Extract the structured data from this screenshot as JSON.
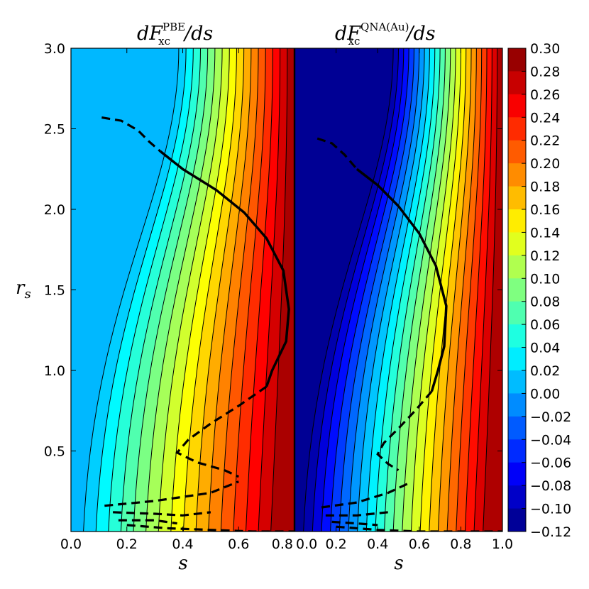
{
  "chart_data": {
    "type": "contour",
    "panels": [
      {
        "id": "pbe",
        "title": {
          "prefix": "dF",
          "sup": "PBE",
          "sub": "xc",
          "suffix": "/ds"
        },
        "xlabel": "s",
        "xlim": [
          0.0,
          0.8
        ],
        "xticks": [
          "0.0",
          "0.2",
          "0.4",
          "0.6",
          "0.8"
        ],
        "levels_min": 0.0,
        "levels_max": 0.3,
        "num_contour_lines": 16,
        "solid_curve": [
          [
            0.32,
            2.36
          ],
          [
            0.4,
            2.25
          ],
          [
            0.52,
            2.12
          ],
          [
            0.62,
            1.98
          ],
          [
            0.7,
            1.82
          ],
          [
            0.76,
            1.62
          ],
          [
            0.78,
            1.38
          ],
          [
            0.77,
            1.18
          ],
          [
            0.72,
            1.0
          ],
          [
            0.7,
            0.9
          ]
        ],
        "dashed_curves": [
          [
            [
              0.11,
              2.57
            ],
            [
              0.18,
              2.55
            ],
            [
              0.24,
              2.49
            ],
            [
              0.28,
              2.42
            ],
            [
              0.32,
              2.36
            ]
          ],
          [
            [
              0.7,
              0.9
            ],
            [
              0.6,
              0.78
            ],
            [
              0.5,
              0.67
            ],
            [
              0.42,
              0.57
            ],
            [
              0.38,
              0.49
            ],
            [
              0.45,
              0.43
            ],
            [
              0.55,
              0.38
            ],
            [
              0.6,
              0.34
            ]
          ],
          [
            [
              0.12,
              0.16
            ],
            [
              0.3,
              0.19
            ],
            [
              0.5,
              0.24
            ],
            [
              0.6,
              0.31
            ]
          ],
          [
            [
              0.15,
              0.12
            ],
            [
              0.3,
              0.11
            ],
            [
              0.4,
              0.1
            ],
            [
              0.5,
              0.12
            ]
          ],
          [
            [
              0.17,
              0.07
            ],
            [
              0.3,
              0.07
            ],
            [
              0.38,
              0.05
            ]
          ],
          [
            [
              0.2,
              0.04
            ],
            [
              0.35,
              0.02
            ],
            [
              0.5,
              0.01
            ],
            [
              0.65,
              0.0
            ],
            [
              0.8,
              0.0
            ]
          ]
        ]
      },
      {
        "id": "qna",
        "title": {
          "prefix": "dF",
          "sup": "QNA(Au)",
          "sub": "xc",
          "suffix": "/ds"
        },
        "xlabel": "s",
        "xlim": [
          0.0,
          1.0
        ],
        "xticks": [
          "0.0",
          "0.2",
          "0.4",
          "0.6",
          "0.8",
          "1.0"
        ],
        "levels_min": -0.12,
        "levels_max": 0.3,
        "num_contour_lines": 21,
        "solid_curve": [
          [
            0.3,
            2.25
          ],
          [
            0.4,
            2.15
          ],
          [
            0.5,
            2.02
          ],
          [
            0.6,
            1.85
          ],
          [
            0.68,
            1.65
          ],
          [
            0.73,
            1.4
          ],
          [
            0.72,
            1.15
          ],
          [
            0.69,
            1.0
          ],
          [
            0.66,
            0.87
          ]
        ],
        "dashed_curves": [
          [
            [
              0.11,
              2.44
            ],
            [
              0.18,
              2.41
            ],
            [
              0.24,
              2.34
            ],
            [
              0.3,
              2.25
            ]
          ],
          [
            [
              0.66,
              0.87
            ],
            [
              0.58,
              0.75
            ],
            [
              0.5,
              0.64
            ],
            [
              0.43,
              0.55
            ],
            [
              0.4,
              0.48
            ],
            [
              0.45,
              0.42
            ],
            [
              0.5,
              0.38
            ]
          ],
          [
            [
              0.13,
              0.15
            ],
            [
              0.3,
              0.18
            ],
            [
              0.45,
              0.24
            ],
            [
              0.55,
              0.3
            ]
          ],
          [
            [
              0.15,
              0.1
            ],
            [
              0.3,
              0.1
            ],
            [
              0.45,
              0.12
            ]
          ],
          [
            [
              0.18,
              0.06
            ],
            [
              0.3,
              0.05
            ],
            [
              0.4,
              0.04
            ]
          ],
          [
            [
              0.2,
              0.03
            ],
            [
              0.4,
              0.01
            ],
            [
              0.6,
              0.0
            ],
            [
              1.0,
              0.0
            ]
          ]
        ]
      }
    ],
    "ylabel": "r",
    "ylabel_sub": "s",
    "ylim": [
      0.0,
      3.0
    ],
    "yticks": [
      "0.5",
      "1.0",
      "1.5",
      "2.0",
      "2.5",
      "3.0"
    ],
    "colorbar": {
      "min": -0.12,
      "max": 0.3,
      "ticks": [
        "0.30",
        "0.28",
        "0.26",
        "0.24",
        "0.22",
        "0.20",
        "0.18",
        "0.16",
        "0.14",
        "0.12",
        "0.10",
        "0.08",
        "0.06",
        "0.04",
        "0.02",
        "0.00",
        "−0.02",
        "−0.04",
        "−0.06",
        "−0.08",
        "−0.10",
        "−0.12"
      ]
    }
  }
}
